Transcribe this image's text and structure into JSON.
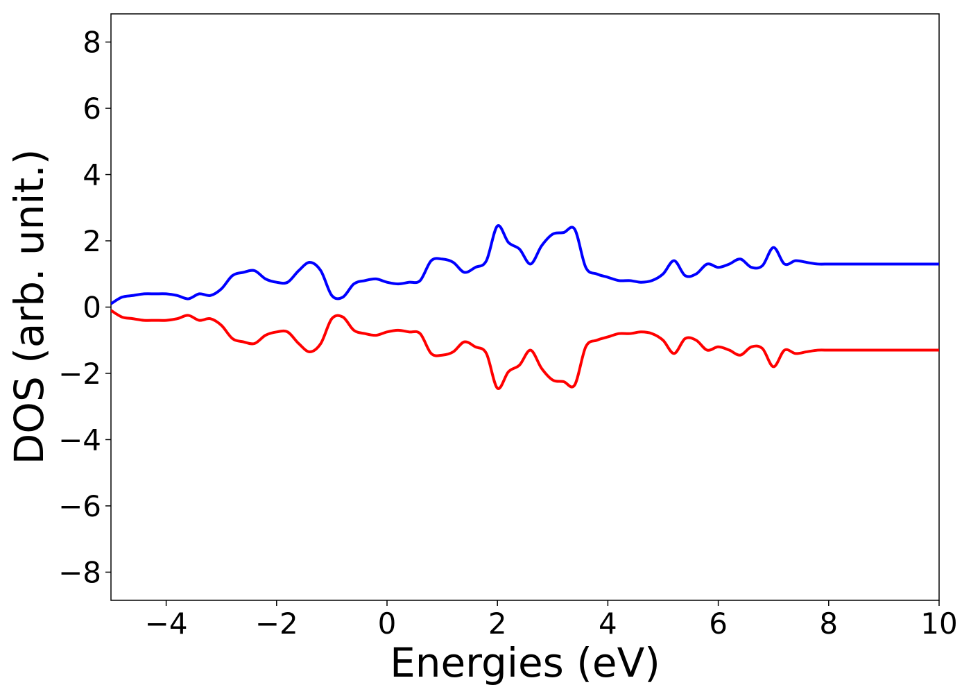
{
  "chart_data": {
    "type": "line",
    "title": "",
    "xlabel": "Energies (eV)",
    "ylabel": "DOS (arb. unit.)",
    "xlim": [
      -5,
      10
    ],
    "ylim": [
      -8.85,
      8.85
    ],
    "xticks": [
      -4,
      -2,
      0,
      2,
      4,
      6,
      8,
      10
    ],
    "xtick_labels": [
      "−4",
      "−2",
      "0",
      "2",
      "4",
      "6",
      "8",
      "10"
    ],
    "yticks": [
      -8,
      -6,
      -4,
      -2,
      0,
      2,
      4,
      6,
      8
    ],
    "ytick_labels": [
      "−8",
      "−6",
      "−4",
      "−2",
      "0",
      "2",
      "4",
      "6",
      "8"
    ],
    "grid": false,
    "legend": "none",
    "colors": {
      "series_up": "#0000ff",
      "series_down": "#ff0000"
    },
    "x": [
      -5.0,
      -4.8,
      -4.6,
      -4.4,
      -4.2,
      -4.0,
      -3.8,
      -3.6,
      -3.4,
      -3.2,
      -3.0,
      -2.8,
      -2.6,
      -2.4,
      -2.2,
      -2.0,
      -1.8,
      -1.6,
      -1.4,
      -1.2,
      -1.0,
      -0.8,
      -0.6,
      -0.4,
      -0.2,
      0.0,
      0.2,
      0.4,
      0.6,
      0.8,
      1.0,
      1.2,
      1.4,
      1.6,
      1.8,
      2.0,
      2.2,
      2.4,
      2.6,
      2.8,
      3.0,
      3.2,
      3.4,
      3.6,
      3.8,
      4.0,
      4.2,
      4.4,
      4.6,
      4.8,
      5.0,
      5.2,
      5.4,
      5.6,
      5.8,
      6.0,
      6.2,
      6.4,
      6.6,
      6.8,
      7.0,
      7.2,
      7.4,
      7.6,
      7.8,
      8.0,
      8.2,
      8.4,
      8.6,
      8.8,
      9.0,
      9.2,
      9.4,
      9.6,
      9.8,
      10.0
    ],
    "series": [
      {
        "values": [
          0.1,
          0.3,
          0.35,
          0.4,
          0.4,
          0.4,
          0.35,
          0.25,
          0.4,
          0.35,
          0.55,
          0.95,
          1.05,
          1.1,
          0.85,
          0.75,
          0.75,
          1.1,
          1.35,
          1.1,
          0.35,
          0.3,
          0.7,
          0.8,
          0.85,
          0.75,
          0.7,
          0.75,
          0.8,
          1.4,
          1.45,
          1.35,
          1.05,
          1.2,
          1.4,
          2.45,
          1.95,
          1.75,
          1.3,
          1.85,
          2.2,
          2.25,
          2.35,
          1.2,
          1.0,
          0.9,
          0.8,
          0.8,
          0.75,
          0.8,
          1.0,
          1.4,
          0.95,
          1.0,
          1.3,
          1.2,
          1.3,
          1.45,
          1.2,
          1.25,
          1.8,
          1.3,
          1.4,
          1.35,
          1.3,
          1.3,
          1.3,
          1.3,
          1.3,
          1.3,
          1.3,
          1.3,
          1.3,
          1.3,
          1.3,
          1.3
        ]
      },
      {
        "values": [
          -0.1,
          -0.3,
          -0.35,
          -0.4,
          -0.4,
          -0.4,
          -0.35,
          -0.25,
          -0.4,
          -0.35,
          -0.55,
          -0.95,
          -1.05,
          -1.1,
          -0.85,
          -0.75,
          -0.75,
          -1.1,
          -1.35,
          -1.1,
          -0.35,
          -0.3,
          -0.7,
          -0.8,
          -0.85,
          -0.75,
          -0.7,
          -0.75,
          -0.8,
          -1.4,
          -1.45,
          -1.35,
          -1.05,
          -1.2,
          -1.4,
          -2.45,
          -1.95,
          -1.75,
          -1.3,
          -1.85,
          -2.2,
          -2.25,
          -2.35,
          -1.2,
          -1.0,
          -0.9,
          -0.8,
          -0.8,
          -0.75,
          -0.8,
          -1.0,
          -1.4,
          -0.95,
          -1.0,
          -1.3,
          -1.2,
          -1.3,
          -1.45,
          -1.2,
          -1.25,
          -1.8,
          -1.3,
          -1.4,
          -1.35,
          -1.3,
          -1.3,
          -1.3,
          -1.3,
          -1.3,
          -1.3,
          -1.3,
          -1.3,
          -1.3,
          -1.3,
          -1.3,
          -1.3
        ]
      }
    ]
  }
}
